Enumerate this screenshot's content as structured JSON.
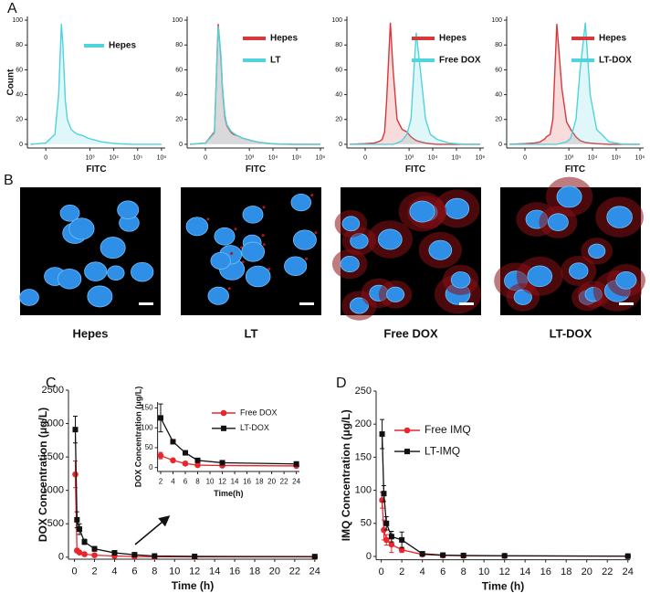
{
  "panel_labels": [
    "A",
    "B",
    "C",
    "D"
  ],
  "images": {
    "captions": [
      "Hepes",
      "LT",
      "Free DOX",
      "LT-DOX"
    ]
  },
  "chart_data": [
    {
      "type": "area",
      "xlabel": "FITC",
      "ylabel": "Count",
      "xscale": "symlog",
      "x": [
        -50,
        0,
        20,
        35,
        50,
        60,
        80,
        100,
        150,
        200,
        300,
        500,
        800,
        1200,
        2000,
        3000,
        5000,
        8000,
        15000,
        50000,
        200000,
        1000000
      ],
      "xlim": [
        -70,
        1430000
      ],
      "ylim": [
        -3,
        103
      ],
      "xticks": [
        0,
        {
          "value": 1000,
          "label": "10³"
        },
        {
          "value": 10000,
          "label": "10⁴"
        },
        {
          "value": 100000,
          "label": "10⁵"
        },
        {
          "value": 1000000,
          "label": "10⁶"
        }
      ],
      "yticks": [
        0,
        20,
        40,
        60,
        80,
        100
      ],
      "series": [
        {
          "name": "Hepes",
          "color": "#4fd3dc",
          "values": [
            0,
            1,
            8,
            40,
            97,
            80,
            35,
            20,
            12,
            10,
            8,
            7,
            5,
            4,
            3,
            2,
            1.5,
            1,
            0.5,
            0,
            0,
            0
          ]
        }
      ]
    },
    {
      "type": "area",
      "xlabel": "FITC",
      "xscale": "symlog",
      "x": [
        -50,
        0,
        20,
        35,
        50,
        60,
        80,
        100,
        150,
        200,
        300,
        500,
        800,
        1200,
        2000,
        3000,
        5000,
        8000,
        15000,
        50000,
        200000,
        1000000
      ],
      "xlim": [
        -70,
        1430000
      ],
      "ylim": [
        -3,
        103
      ],
      "xticks": [
        0,
        {
          "value": 1000,
          "label": "10³"
        },
        {
          "value": 10000,
          "label": "10⁴"
        },
        {
          "value": 100000,
          "label": "10⁵"
        },
        {
          "value": 1000000,
          "label": "10⁶"
        }
      ],
      "yticks": [
        0,
        20,
        40,
        60,
        80,
        100
      ],
      "series": [
        {
          "name": "Hepes",
          "color": "#d9383a",
          "values": [
            0,
            1,
            10,
            97,
            70,
            45,
            22,
            15,
            10,
            8,
            7,
            5,
            4,
            3,
            2,
            1.5,
            1,
            0.5,
            0.3,
            0,
            0,
            0
          ]
        },
        {
          "name": "LT",
          "color": "#4fd3dc",
          "values": [
            0,
            1,
            9,
            95,
            72,
            47,
            24,
            16,
            11,
            9,
            7,
            5,
            4,
            3,
            2,
            1.5,
            1,
            0.5,
            0.3,
            0,
            0,
            0
          ]
        }
      ]
    },
    {
      "type": "area",
      "xlabel": "FITC",
      "xscale": "symlog",
      "x": [
        -50,
        0,
        20,
        35,
        50,
        60,
        80,
        100,
        150,
        200,
        300,
        500,
        800,
        1200,
        2000,
        3000,
        5000,
        8000,
        15000,
        50000,
        200000,
        1000000
      ],
      "xlim": [
        -70,
        1430000
      ],
      "ylim": [
        -3,
        103
      ],
      "xticks": [
        0,
        {
          "value": 1000,
          "label": "10³"
        },
        {
          "value": 10000,
          "label": "10⁴"
        },
        {
          "value": 100000,
          "label": "10⁵"
        },
        {
          "value": 1000000,
          "label": "10⁶"
        }
      ],
      "yticks": [
        0,
        20,
        40,
        60,
        80,
        100
      ],
      "series": [
        {
          "name": "Hepes",
          "color": "#d9383a",
          "values": [
            0,
            0.5,
            1,
            2,
            3,
            4,
            10,
            35,
            98,
            60,
            20,
            12,
            10,
            6,
            3,
            2,
            1,
            0.5,
            0,
            0,
            0,
            0
          ]
        },
        {
          "name": "Free DOX",
          "color": "#4fd3dc",
          "values": [
            0,
            0,
            0,
            0,
            0,
            0,
            0,
            0,
            0,
            0,
            1,
            3,
            8,
            20,
            90,
            60,
            20,
            8,
            4,
            1,
            0,
            0
          ]
        }
      ]
    },
    {
      "type": "area",
      "xlabel": "FITC",
      "xscale": "symlog",
      "x": [
        -50,
        0,
        20,
        35,
        50,
        60,
        80,
        100,
        150,
        200,
        300,
        500,
        800,
        1200,
        2000,
        3000,
        5000,
        8000,
        15000,
        50000,
        200000,
        1000000
      ],
      "xlim": [
        -70,
        1430000
      ],
      "ylim": [
        -3,
        103
      ],
      "xticks": [
        0,
        {
          "value": 1000,
          "label": "10³"
        },
        {
          "value": 10000,
          "label": "10⁴"
        },
        {
          "value": 100000,
          "label": "10⁵"
        },
        {
          "value": 1000000,
          "label": "10⁶"
        }
      ],
      "yticks": [
        0,
        20,
        40,
        60,
        80,
        100
      ],
      "series": [
        {
          "name": "Hepes",
          "color": "#d9383a",
          "values": [
            0,
            0.5,
            1,
            1.5,
            2,
            3,
            4,
            6,
            8,
            20,
            97,
            45,
            18,
            12,
            6,
            3,
            1.5,
            1,
            0.5,
            0,
            0,
            0
          ]
        },
        {
          "name": "LT-DOX",
          "color": "#4fd3dc",
          "values": [
            0,
            0,
            0,
            0,
            0,
            0,
            0,
            0,
            0,
            0,
            0,
            1,
            2,
            5,
            20,
            60,
            98,
            40,
            12,
            2,
            0,
            0
          ]
        }
      ]
    },
    {
      "type": "line",
      "xlabel": "Time (h)",
      "ylabel": "DOX Concentration (μg/L)",
      "x": [
        0.083,
        0.25,
        0.5,
        1,
        2,
        4,
        6,
        8,
        12,
        24
      ],
      "xlim": [
        -0.6,
        24.2
      ],
      "ylim": [
        -30,
        2500
      ],
      "xticks": [
        0,
        2,
        4,
        6,
        8,
        10,
        12,
        14,
        16,
        18,
        20,
        22,
        24
      ],
      "yticks": [
        0,
        500,
        1000,
        1500,
        2000,
        2500
      ],
      "series": [
        {
          "color": "#e8262d",
          "marker": "circle",
          "values": [
            1240,
            100,
            70,
            45,
            30,
            18,
            10,
            6,
            5,
            4
          ],
          "errors": [
            200,
            30,
            20,
            10,
            8,
            5,
            4,
            2,
            2,
            1
          ]
        },
        {
          "color": "#111111",
          "marker": "square",
          "values": [
            1910,
            560,
            420,
            230,
            125,
            65,
            37,
            18,
            12,
            9
          ],
          "errors": [
            200,
            120,
            80,
            40,
            35,
            3,
            3,
            2,
            3,
            4
          ]
        }
      ]
    },
    {
      "type": "line",
      "xlabel": "Time(h)",
      "ylabel": "DOX Concentration (μg/L)",
      "x": [
        2,
        4,
        6,
        8,
        12,
        24
      ],
      "xlim": [
        1.5,
        24.5
      ],
      "ylim": [
        -10,
        165
      ],
      "xticks": [
        2,
        4,
        6,
        8,
        10,
        12,
        14,
        16,
        18,
        20,
        22,
        24
      ],
      "yticks": [
        0,
        50,
        100,
        150
      ],
      "series": [
        {
          "name": "Free DOX",
          "color": "#e8262d",
          "marker": "circle",
          "values": [
            30,
            18,
            10,
            6,
            5,
            4
          ],
          "errors": [
            8,
            4,
            5,
            2,
            2,
            1
          ]
        },
        {
          "name": "LT-DOX",
          "color": "#111111",
          "marker": "square",
          "values": [
            125,
            65,
            37,
            18,
            12,
            9
          ],
          "errors": [
            35,
            3,
            3,
            2,
            3,
            4
          ]
        }
      ]
    },
    {
      "type": "line",
      "xlabel": "Time (h)",
      "ylabel": "IMQ Concentration (μg/L)",
      "x": [
        0.083,
        0.25,
        0.5,
        1,
        2,
        4,
        6,
        8,
        12,
        24
      ],
      "xlim": [
        -0.5,
        24.2
      ],
      "ylim": [
        -5,
        250
      ],
      "xticks": [
        0,
        2,
        4,
        6,
        8,
        10,
        12,
        14,
        16,
        18,
        20,
        22,
        24
      ],
      "yticks": [
        0,
        50,
        100,
        150,
        200,
        250
      ],
      "series": [
        {
          "name": "Free IMQ",
          "color": "#e8262d",
          "marker": "circle",
          "values": [
            85,
            40,
            25,
            18,
            10,
            3,
            1.5,
            1,
            0.8,
            0.3
          ],
          "errors": [
            12,
            15,
            8,
            12,
            4,
            1,
            0.5,
            0.3,
            0.3,
            0.1
          ]
        },
        {
          "name": "LT-IMQ",
          "color": "#111111",
          "marker": "square",
          "values": [
            185,
            95,
            50,
            30,
            25,
            4,
            2,
            1.5,
            1,
            0.5
          ],
          "errors": [
            22,
            12,
            10,
            8,
            12,
            1,
            1,
            0.5,
            0.5,
            0.3
          ]
        }
      ]
    }
  ]
}
